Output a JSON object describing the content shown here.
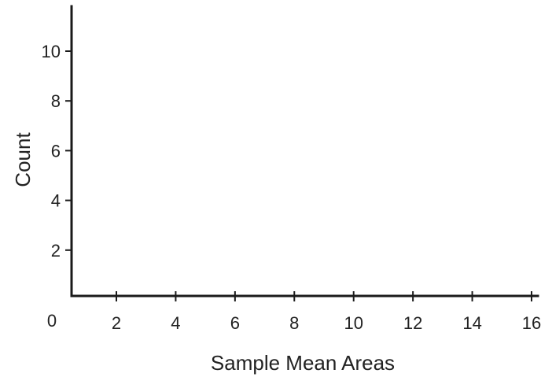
{
  "chart_data": {
    "type": "bar",
    "title": "",
    "xlabel": "Sample Mean Areas",
    "ylabel": "Count",
    "origin_label": "0",
    "x_ticks": [
      {
        "value": 2,
        "label": "2"
      },
      {
        "value": 4,
        "label": "4"
      },
      {
        "value": 6,
        "label": "6"
      },
      {
        "value": 8,
        "label": "8"
      },
      {
        "value": 10,
        "label": "10"
      },
      {
        "value": 12,
        "label": "12"
      },
      {
        "value": 14,
        "label": "14"
      },
      {
        "value": 16,
        "label": "16"
      }
    ],
    "y_ticks": [
      {
        "value": 2,
        "label": "2"
      },
      {
        "value": 4,
        "label": "4"
      },
      {
        "value": 6,
        "label": "6"
      },
      {
        "value": 8,
        "label": "8"
      },
      {
        "value": 10,
        "label": "10"
      }
    ],
    "xlim": [
      0,
      16
    ],
    "ylim": [
      0,
      12
    ],
    "grid": false,
    "categories": [],
    "values": []
  }
}
